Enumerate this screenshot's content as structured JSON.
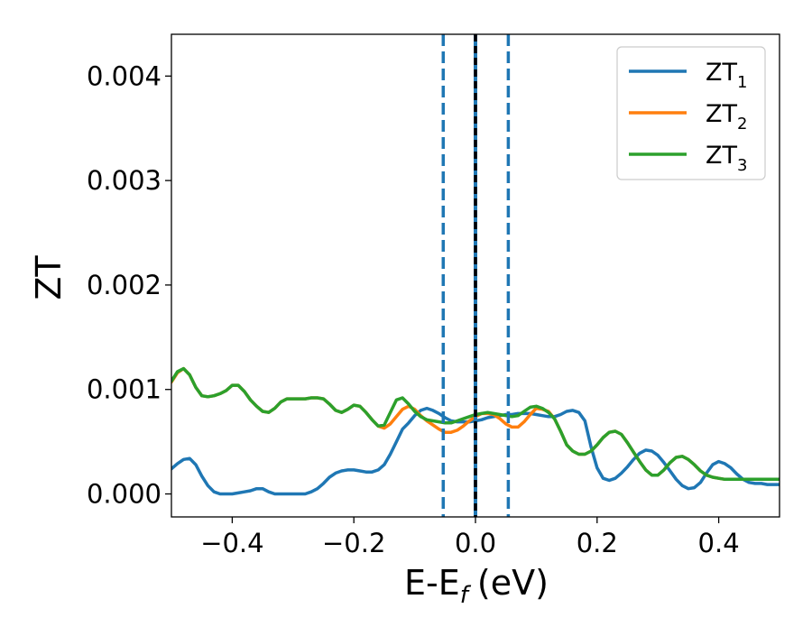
{
  "chart_data": {
    "type": "line",
    "title": "",
    "xlabel": "E-E",
    "xlabel_sub": "f",
    "xlabel_unit": "(eV)",
    "ylabel": "ZT",
    "xlim": [
      -0.5,
      0.5
    ],
    "ylim": [
      -0.00022,
      0.0044
    ],
    "xticks": [
      -0.4,
      -0.2,
      0.0,
      0.2,
      0.4
    ],
    "xtick_labels": [
      "−0.4",
      "−0.2",
      "0.0",
      "0.2",
      "0.4"
    ],
    "yticks": [
      0.0,
      0.001,
      0.002,
      0.003,
      0.004
    ],
    "ytick_labels": [
      "0.000",
      "0.001",
      "0.002",
      "0.003",
      "0.004"
    ],
    "grid": false,
    "legend_position": "top-right",
    "vertical_lines": [
      {
        "x": -0.053,
        "style": "dashed",
        "color": "#1f77b4"
      },
      {
        "x": 0.054,
        "style": "dashed",
        "color": "#1f77b4"
      },
      {
        "x": 0.0,
        "style": "solid",
        "color": "#1f77b4"
      },
      {
        "x": 0.0,
        "style": "dashed",
        "color": "#000000"
      }
    ],
    "series": [
      {
        "name": "ZT",
        "name_sub": "1",
        "color": "#1f77b4",
        "x": [
          -0.5,
          -0.49,
          -0.48,
          -0.47,
          -0.46,
          -0.45,
          -0.44,
          -0.43,
          -0.42,
          -0.41,
          -0.4,
          -0.39,
          -0.38,
          -0.37,
          -0.36,
          -0.35,
          -0.34,
          -0.33,
          -0.32,
          -0.31,
          -0.3,
          -0.29,
          -0.28,
          -0.27,
          -0.26,
          -0.25,
          -0.24,
          -0.23,
          -0.22,
          -0.21,
          -0.2,
          -0.19,
          -0.18,
          -0.17,
          -0.16,
          -0.15,
          -0.14,
          -0.13,
          -0.12,
          -0.11,
          -0.1,
          -0.09,
          -0.08,
          -0.07,
          -0.06,
          -0.05,
          -0.04,
          -0.03,
          -0.02,
          -0.01,
          0.0,
          0.01,
          0.02,
          0.03,
          0.04,
          0.05,
          0.06,
          0.07,
          0.08,
          0.09,
          0.1,
          0.11,
          0.12,
          0.13,
          0.14,
          0.15,
          0.16,
          0.17,
          0.18,
          0.19,
          0.2,
          0.21,
          0.22,
          0.23,
          0.24,
          0.25,
          0.26,
          0.27,
          0.28,
          0.29,
          0.3,
          0.31,
          0.32,
          0.33,
          0.34,
          0.35,
          0.36,
          0.37,
          0.38,
          0.39,
          0.4,
          0.41,
          0.42,
          0.43,
          0.44,
          0.45,
          0.46,
          0.47,
          0.48,
          0.49,
          0.5
        ],
        "y": [
          0.00024,
          0.00029,
          0.00033,
          0.00034,
          0.00028,
          0.00017,
          8e-05,
          2e-05,
          0.0,
          0.0,
          0.0,
          1e-05,
          2e-05,
          3e-05,
          5e-05,
          5e-05,
          2e-05,
          0.0,
          0.0,
          0.0,
          0.0,
          0.0,
          0.0,
          2e-05,
          5e-05,
          0.0001,
          0.00016,
          0.0002,
          0.00022,
          0.00023,
          0.00023,
          0.00022,
          0.00021,
          0.00021,
          0.00023,
          0.00028,
          0.00038,
          0.0005,
          0.00062,
          0.00068,
          0.00075,
          0.0008,
          0.00082,
          0.0008,
          0.00077,
          0.00073,
          0.0007,
          0.00069,
          0.00069,
          0.00069,
          0.0007,
          0.00071,
          0.00073,
          0.00074,
          0.00075,
          0.00076,
          0.00076,
          0.00077,
          0.00077,
          0.00077,
          0.00076,
          0.00075,
          0.00074,
          0.00074,
          0.00076,
          0.00079,
          0.0008,
          0.00078,
          0.0007,
          0.00045,
          0.00025,
          0.00015,
          0.00013,
          0.00015,
          0.0002,
          0.00026,
          0.00033,
          0.00039,
          0.00042,
          0.00041,
          0.00037,
          0.0003,
          0.00022,
          0.00014,
          8e-05,
          5e-05,
          6e-05,
          0.00011,
          0.0002,
          0.00028,
          0.00031,
          0.00029,
          0.00025,
          0.00019,
          0.00014,
          0.00011,
          0.0001,
          0.0001,
          9e-05,
          9e-05,
          9e-05
        ]
      },
      {
        "name": "ZT",
        "name_sub": "2",
        "color": "#ff7f0e",
        "x": [
          -0.5,
          -0.49,
          -0.48,
          -0.47,
          -0.46,
          -0.45,
          -0.44,
          -0.43,
          -0.42,
          -0.41,
          -0.4,
          -0.39,
          -0.38,
          -0.37,
          -0.36,
          -0.35,
          -0.34,
          -0.33,
          -0.32,
          -0.31,
          -0.3,
          -0.29,
          -0.28,
          -0.27,
          -0.26,
          -0.25,
          -0.24,
          -0.23,
          -0.22,
          -0.21,
          -0.2,
          -0.19,
          -0.18,
          -0.17,
          -0.16,
          -0.15,
          -0.14,
          -0.13,
          -0.12,
          -0.11,
          -0.1,
          -0.09,
          -0.08,
          -0.07,
          -0.06,
          -0.05,
          -0.04,
          -0.03,
          -0.02,
          -0.01,
          0.0,
          0.01,
          0.02,
          0.03,
          0.04,
          0.05,
          0.06,
          0.07,
          0.08,
          0.09,
          0.1,
          0.11,
          0.12,
          0.13,
          0.14,
          0.15,
          0.16,
          0.17,
          0.18,
          0.19,
          0.2,
          0.21,
          0.22,
          0.23,
          0.24,
          0.25,
          0.26,
          0.27,
          0.28,
          0.29,
          0.3,
          0.31,
          0.32,
          0.33,
          0.34,
          0.35,
          0.36,
          0.37,
          0.38,
          0.39,
          0.4,
          0.41,
          0.42,
          0.43,
          0.44,
          0.45,
          0.46,
          0.47,
          0.48,
          0.49,
          0.5
        ],
        "y": [
          0.00107,
          0.00116,
          0.0012,
          0.00114,
          0.00102,
          0.00094,
          0.00093,
          0.00094,
          0.00096,
          0.00099,
          0.00104,
          0.00104,
          0.00098,
          0.0009,
          0.00084,
          0.00079,
          0.00078,
          0.00082,
          0.00088,
          0.00091,
          0.00091,
          0.00091,
          0.00091,
          0.00092,
          0.00092,
          0.00091,
          0.00086,
          0.0008,
          0.00078,
          0.00081,
          0.00085,
          0.00084,
          0.00078,
          0.00071,
          0.00065,
          0.00063,
          0.00067,
          0.00074,
          0.00081,
          0.00084,
          0.00081,
          0.00075,
          0.0007,
          0.00066,
          0.00062,
          0.00059,
          0.00059,
          0.00061,
          0.00065,
          0.0007,
          0.00074,
          0.00077,
          0.00077,
          0.00076,
          0.00072,
          0.00067,
          0.00064,
          0.00064,
          0.00069,
          0.00076,
          0.00082,
          0.00081,
          0.00079,
          0.00072,
          0.0006,
          0.00047,
          0.00041,
          0.00038,
          0.00038,
          0.00041,
          0.00047,
          0.00054,
          0.00059,
          0.0006,
          0.00057,
          0.00049,
          0.0004,
          0.00031,
          0.00023,
          0.00018,
          0.00018,
          0.00023,
          0.0003,
          0.00035,
          0.00036,
          0.00033,
          0.00028,
          0.00022,
          0.00018,
          0.00016,
          0.00015,
          0.00014,
          0.00014,
          0.00014,
          0.00014,
          0.00014,
          0.00014,
          0.00014,
          0.00014,
          0.00014,
          0.00014
        ]
      },
      {
        "name": "ZT",
        "name_sub": "3",
        "color": "#2ca02c",
        "x": [
          -0.5,
          -0.49,
          -0.48,
          -0.47,
          -0.46,
          -0.45,
          -0.44,
          -0.43,
          -0.42,
          -0.41,
          -0.4,
          -0.39,
          -0.38,
          -0.37,
          -0.36,
          -0.35,
          -0.34,
          -0.33,
          -0.32,
          -0.31,
          -0.3,
          -0.29,
          -0.28,
          -0.27,
          -0.26,
          -0.25,
          -0.24,
          -0.23,
          -0.22,
          -0.21,
          -0.2,
          -0.19,
          -0.18,
          -0.17,
          -0.16,
          -0.15,
          -0.14,
          -0.13,
          -0.12,
          -0.11,
          -0.1,
          -0.09,
          -0.08,
          -0.07,
          -0.06,
          -0.05,
          -0.04,
          -0.03,
          -0.02,
          -0.01,
          0.0,
          0.01,
          0.02,
          0.03,
          0.04,
          0.05,
          0.06,
          0.07,
          0.08,
          0.09,
          0.1,
          0.11,
          0.12,
          0.13,
          0.14,
          0.15,
          0.16,
          0.17,
          0.18,
          0.19,
          0.2,
          0.21,
          0.22,
          0.23,
          0.24,
          0.25,
          0.26,
          0.27,
          0.28,
          0.29,
          0.3,
          0.31,
          0.32,
          0.33,
          0.34,
          0.35,
          0.36,
          0.37,
          0.38,
          0.39,
          0.4,
          0.41,
          0.42,
          0.43,
          0.44,
          0.45,
          0.46,
          0.47,
          0.48,
          0.49,
          0.5
        ],
        "y": [
          0.00108,
          0.00117,
          0.0012,
          0.00114,
          0.00102,
          0.00094,
          0.00093,
          0.00094,
          0.00096,
          0.00099,
          0.00104,
          0.00104,
          0.00098,
          0.0009,
          0.00084,
          0.00079,
          0.00078,
          0.00082,
          0.00088,
          0.00091,
          0.00091,
          0.00091,
          0.00091,
          0.00092,
          0.00092,
          0.00091,
          0.00086,
          0.0008,
          0.00078,
          0.00081,
          0.00085,
          0.00084,
          0.00078,
          0.00071,
          0.00065,
          0.00066,
          0.00078,
          0.0009,
          0.00092,
          0.00086,
          0.00079,
          0.00074,
          0.00071,
          0.0007,
          0.00069,
          0.00068,
          0.00068,
          0.0007,
          0.00072,
          0.00074,
          0.00076,
          0.00077,
          0.00078,
          0.00077,
          0.00076,
          0.00075,
          0.00074,
          0.00075,
          0.00079,
          0.00083,
          0.00084,
          0.00082,
          0.00078,
          0.00072,
          0.0006,
          0.00047,
          0.00041,
          0.00038,
          0.00038,
          0.00041,
          0.00047,
          0.00054,
          0.00059,
          0.0006,
          0.00057,
          0.00049,
          0.0004,
          0.00031,
          0.00023,
          0.00018,
          0.00018,
          0.00023,
          0.0003,
          0.00035,
          0.00036,
          0.00033,
          0.00028,
          0.00022,
          0.00018,
          0.00016,
          0.00015,
          0.00014,
          0.00014,
          0.00014,
          0.00014,
          0.00014,
          0.00014,
          0.00014,
          0.00014,
          0.00014,
          0.00014
        ]
      }
    ]
  }
}
